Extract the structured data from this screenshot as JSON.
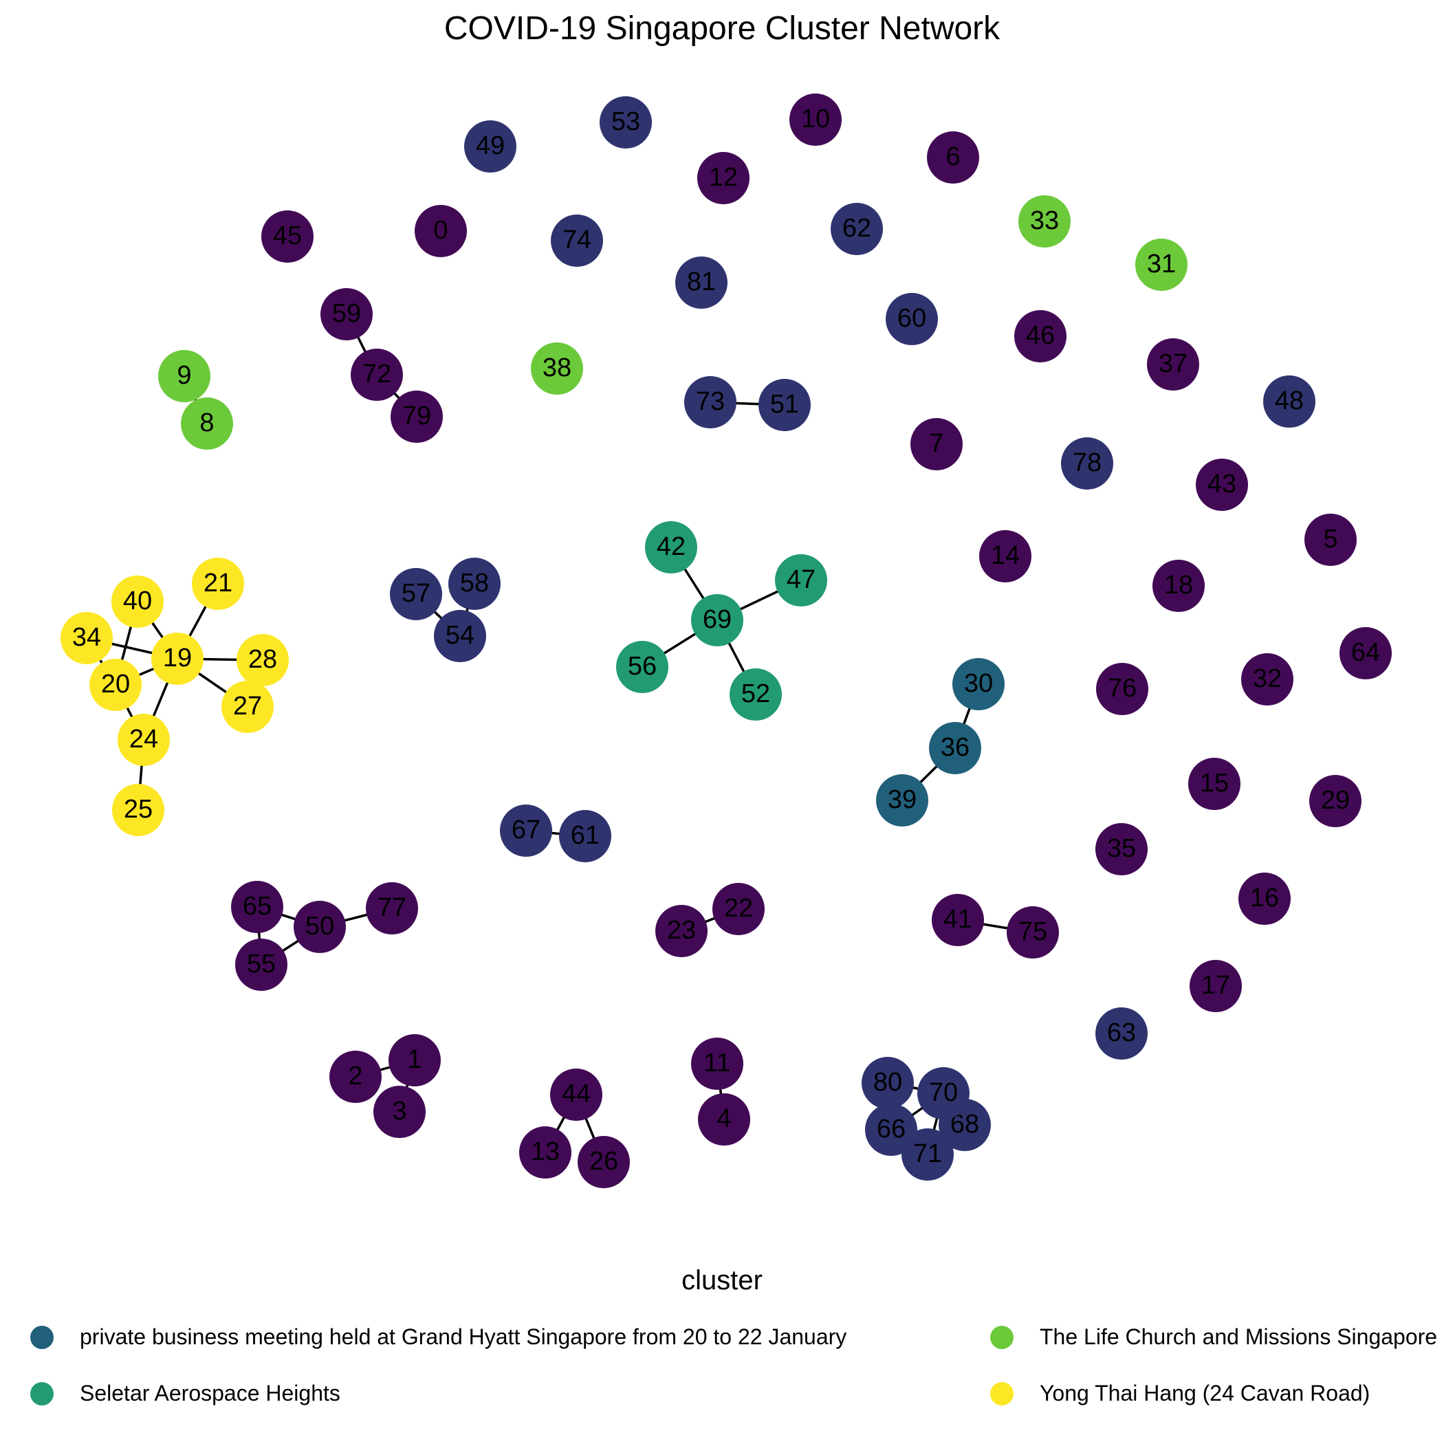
{
  "title": "COVID-19 Singapore Cluster Network",
  "legend": {
    "title": "cluster",
    "items": [
      {
        "label": "private business meeting held at Grand Hyatt Singapore from 20 to 22 January",
        "color": "#21607A"
      },
      {
        "label": "The Life Church and Missions Singapore",
        "color": "#6CC93A"
      },
      {
        "label": "Seletar Aerospace Heights",
        "color": "#229B74"
      },
      {
        "label": "Yong Thai Hang (24 Cavan Road)",
        "color": "#FDE725"
      }
    ]
  },
  "palette": {
    "p": "#420A55",
    "b": "#2F346F",
    "t": "#21607A",
    "g": "#229B74",
    "l": "#6CC93A",
    "y": "#FDE725"
  },
  "nodes": [
    {
      "id": "0",
      "c": "p"
    },
    {
      "id": "1",
      "c": "p"
    },
    {
      "id": "2",
      "c": "p"
    },
    {
      "id": "3",
      "c": "p"
    },
    {
      "id": "4",
      "c": "p"
    },
    {
      "id": "5",
      "c": "p"
    },
    {
      "id": "6",
      "c": "p"
    },
    {
      "id": "7",
      "c": "p"
    },
    {
      "id": "8",
      "c": "l"
    },
    {
      "id": "9",
      "c": "l"
    },
    {
      "id": "10",
      "c": "p"
    },
    {
      "id": "11",
      "c": "p"
    },
    {
      "id": "12",
      "c": "p"
    },
    {
      "id": "13",
      "c": "p"
    },
    {
      "id": "14",
      "c": "p"
    },
    {
      "id": "15",
      "c": "p"
    },
    {
      "id": "16",
      "c": "p"
    },
    {
      "id": "17",
      "c": "p"
    },
    {
      "id": "18",
      "c": "p"
    },
    {
      "id": "19",
      "c": "y"
    },
    {
      "id": "20",
      "c": "y"
    },
    {
      "id": "21",
      "c": "y"
    },
    {
      "id": "22",
      "c": "p"
    },
    {
      "id": "23",
      "c": "p"
    },
    {
      "id": "24",
      "c": "y"
    },
    {
      "id": "25",
      "c": "y"
    },
    {
      "id": "26",
      "c": "p"
    },
    {
      "id": "27",
      "c": "y"
    },
    {
      "id": "28",
      "c": "y"
    },
    {
      "id": "29",
      "c": "p"
    },
    {
      "id": "30",
      "c": "t"
    },
    {
      "id": "31",
      "c": "l"
    },
    {
      "id": "32",
      "c": "p"
    },
    {
      "id": "33",
      "c": "l"
    },
    {
      "id": "34",
      "c": "y"
    },
    {
      "id": "35",
      "c": "p"
    },
    {
      "id": "36",
      "c": "t"
    },
    {
      "id": "37",
      "c": "p"
    },
    {
      "id": "38",
      "c": "l"
    },
    {
      "id": "39",
      "c": "t"
    },
    {
      "id": "40",
      "c": "y"
    },
    {
      "id": "41",
      "c": "p"
    },
    {
      "id": "42",
      "c": "g"
    },
    {
      "id": "43",
      "c": "p"
    },
    {
      "id": "44",
      "c": "p"
    },
    {
      "id": "45",
      "c": "p"
    },
    {
      "id": "46",
      "c": "p"
    },
    {
      "id": "47",
      "c": "g"
    },
    {
      "id": "48",
      "c": "b"
    },
    {
      "id": "49",
      "c": "b"
    },
    {
      "id": "50",
      "c": "p"
    },
    {
      "id": "51",
      "c": "b"
    },
    {
      "id": "52",
      "c": "g"
    },
    {
      "id": "53",
      "c": "b"
    },
    {
      "id": "54",
      "c": "b"
    },
    {
      "id": "55",
      "c": "p"
    },
    {
      "id": "56",
      "c": "g"
    },
    {
      "id": "57",
      "c": "b"
    },
    {
      "id": "58",
      "c": "b"
    },
    {
      "id": "59",
      "c": "p"
    },
    {
      "id": "60",
      "c": "b"
    },
    {
      "id": "61",
      "c": "b"
    },
    {
      "id": "62",
      "c": "b"
    },
    {
      "id": "63",
      "c": "b"
    },
    {
      "id": "64",
      "c": "p"
    },
    {
      "id": "65",
      "c": "p"
    },
    {
      "id": "66",
      "c": "b"
    },
    {
      "id": "67",
      "c": "b"
    },
    {
      "id": "68",
      "c": "b"
    },
    {
      "id": "69",
      "c": "g"
    },
    {
      "id": "70",
      "c": "b"
    },
    {
      "id": "71",
      "c": "b"
    },
    {
      "id": "72",
      "c": "p"
    },
    {
      "id": "73",
      "c": "b"
    },
    {
      "id": "74",
      "c": "b"
    },
    {
      "id": "75",
      "c": "p"
    },
    {
      "id": "76",
      "c": "p"
    },
    {
      "id": "77",
      "c": "p"
    },
    {
      "id": "78",
      "c": "b"
    },
    {
      "id": "79",
      "c": "p"
    },
    {
      "id": "80",
      "c": "b"
    },
    {
      "id": "81",
      "c": "b"
    }
  ],
  "edges": [
    [
      "59",
      "72"
    ],
    [
      "72",
      "79"
    ],
    [
      "9",
      "8"
    ],
    [
      "73",
      "51"
    ],
    [
      "57",
      "54"
    ],
    [
      "58",
      "54"
    ],
    [
      "42",
      "69"
    ],
    [
      "47",
      "69"
    ],
    [
      "56",
      "69"
    ],
    [
      "52",
      "69"
    ],
    [
      "30",
      "36"
    ],
    [
      "36",
      "39"
    ],
    [
      "21",
      "19"
    ],
    [
      "40",
      "19"
    ],
    [
      "40",
      "20"
    ],
    [
      "34",
      "19"
    ],
    [
      "34",
      "20"
    ],
    [
      "19",
      "28"
    ],
    [
      "19",
      "20"
    ],
    [
      "19",
      "27"
    ],
    [
      "19",
      "24"
    ],
    [
      "20",
      "24"
    ],
    [
      "24",
      "25"
    ],
    [
      "67",
      "61"
    ],
    [
      "65",
      "50"
    ],
    [
      "65",
      "55"
    ],
    [
      "55",
      "50"
    ],
    [
      "50",
      "77"
    ],
    [
      "23",
      "22"
    ],
    [
      "41",
      "75"
    ],
    [
      "2",
      "1"
    ],
    [
      "1",
      "3"
    ],
    [
      "44",
      "13"
    ],
    [
      "44",
      "26"
    ],
    [
      "11",
      "4"
    ],
    [
      "80",
      "70"
    ],
    [
      "80",
      "66"
    ],
    [
      "70",
      "66"
    ],
    [
      "70",
      "71"
    ],
    [
      "70",
      "68"
    ],
    [
      "66",
      "71"
    ],
    [
      "71",
      "68"
    ]
  ]
}
